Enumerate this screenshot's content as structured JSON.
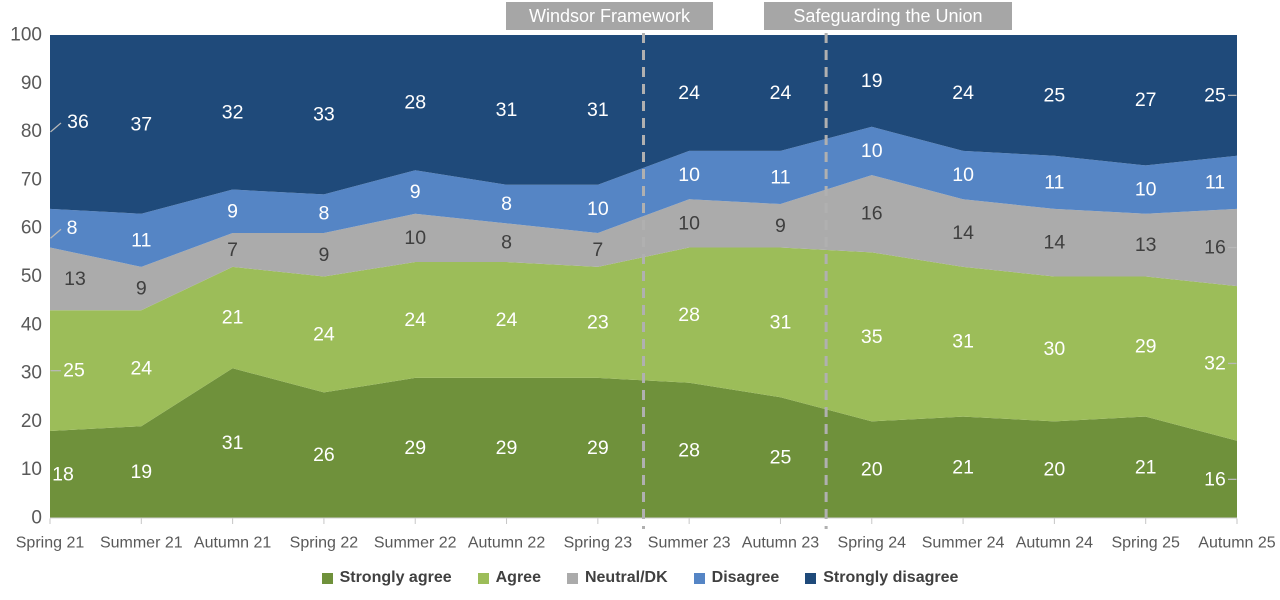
{
  "chart_data": {
    "type": "area",
    "stacked": true,
    "title": "",
    "xlabel": "",
    "ylabel": "",
    "ylim": [
      0,
      100
    ],
    "ytick_step": 10,
    "yticks": [
      0,
      10,
      20,
      30,
      40,
      50,
      60,
      70,
      80,
      90,
      100
    ],
    "grid": "off",
    "legend_position": "bottom",
    "categories": [
      "Spring 21",
      "Summer 21",
      "Autumn 21",
      "Spring 22",
      "Summer 22",
      "Autumn 22",
      "Spring 23",
      "Summer 23",
      "Autumn 23",
      "Spring 24",
      "Summer 24",
      "Autumn 24",
      "Spring 25",
      "Autumn 25"
    ],
    "series": [
      {
        "name": "Strongly agree",
        "color": "#6F913B",
        "label_color": "#FFFFFF",
        "values": [
          18,
          19,
          31,
          26,
          29,
          29,
          29,
          28,
          25,
          20,
          21,
          20,
          21,
          16
        ]
      },
      {
        "name": "Agree",
        "color": "#9CBD59",
        "label_color": "#FFFFFF",
        "values": [
          25,
          24,
          21,
          24,
          24,
          24,
          23,
          28,
          31,
          35,
          31,
          30,
          29,
          32
        ]
      },
      {
        "name": "Neutral/DK",
        "color": "#ABABAB",
        "label_color": "#3F3F3F",
        "values": [
          13,
          9,
          7,
          9,
          10,
          8,
          7,
          10,
          9,
          16,
          14,
          14,
          13,
          16
        ]
      },
      {
        "name": "Disagree",
        "color": "#5585C5",
        "label_color": "#FFFFFF",
        "values": [
          8,
          11,
          9,
          8,
          9,
          8,
          10,
          10,
          11,
          10,
          10,
          11,
          10,
          11
        ]
      },
      {
        "name": "Strongly disagree",
        "color": "#1F4A7A",
        "label_color": "#FFFFFF",
        "values": [
          36,
          37,
          32,
          33,
          28,
          31,
          31,
          24,
          24,
          19,
          24,
          25,
          27,
          25
        ]
      }
    ],
    "annotations": [
      {
        "label": "Windsor Framework",
        "between": [
          "Spring 23",
          "Summer 23"
        ]
      },
      {
        "label": "Safeguarding the Union",
        "between": [
          "Autumn 23",
          "Spring 24"
        ]
      }
    ],
    "axis_color": "#595959",
    "legend_text_color": "#404040",
    "annotation_box_color": "#A6A6A6",
    "dashed_line_color": "#B0B0B0"
  }
}
